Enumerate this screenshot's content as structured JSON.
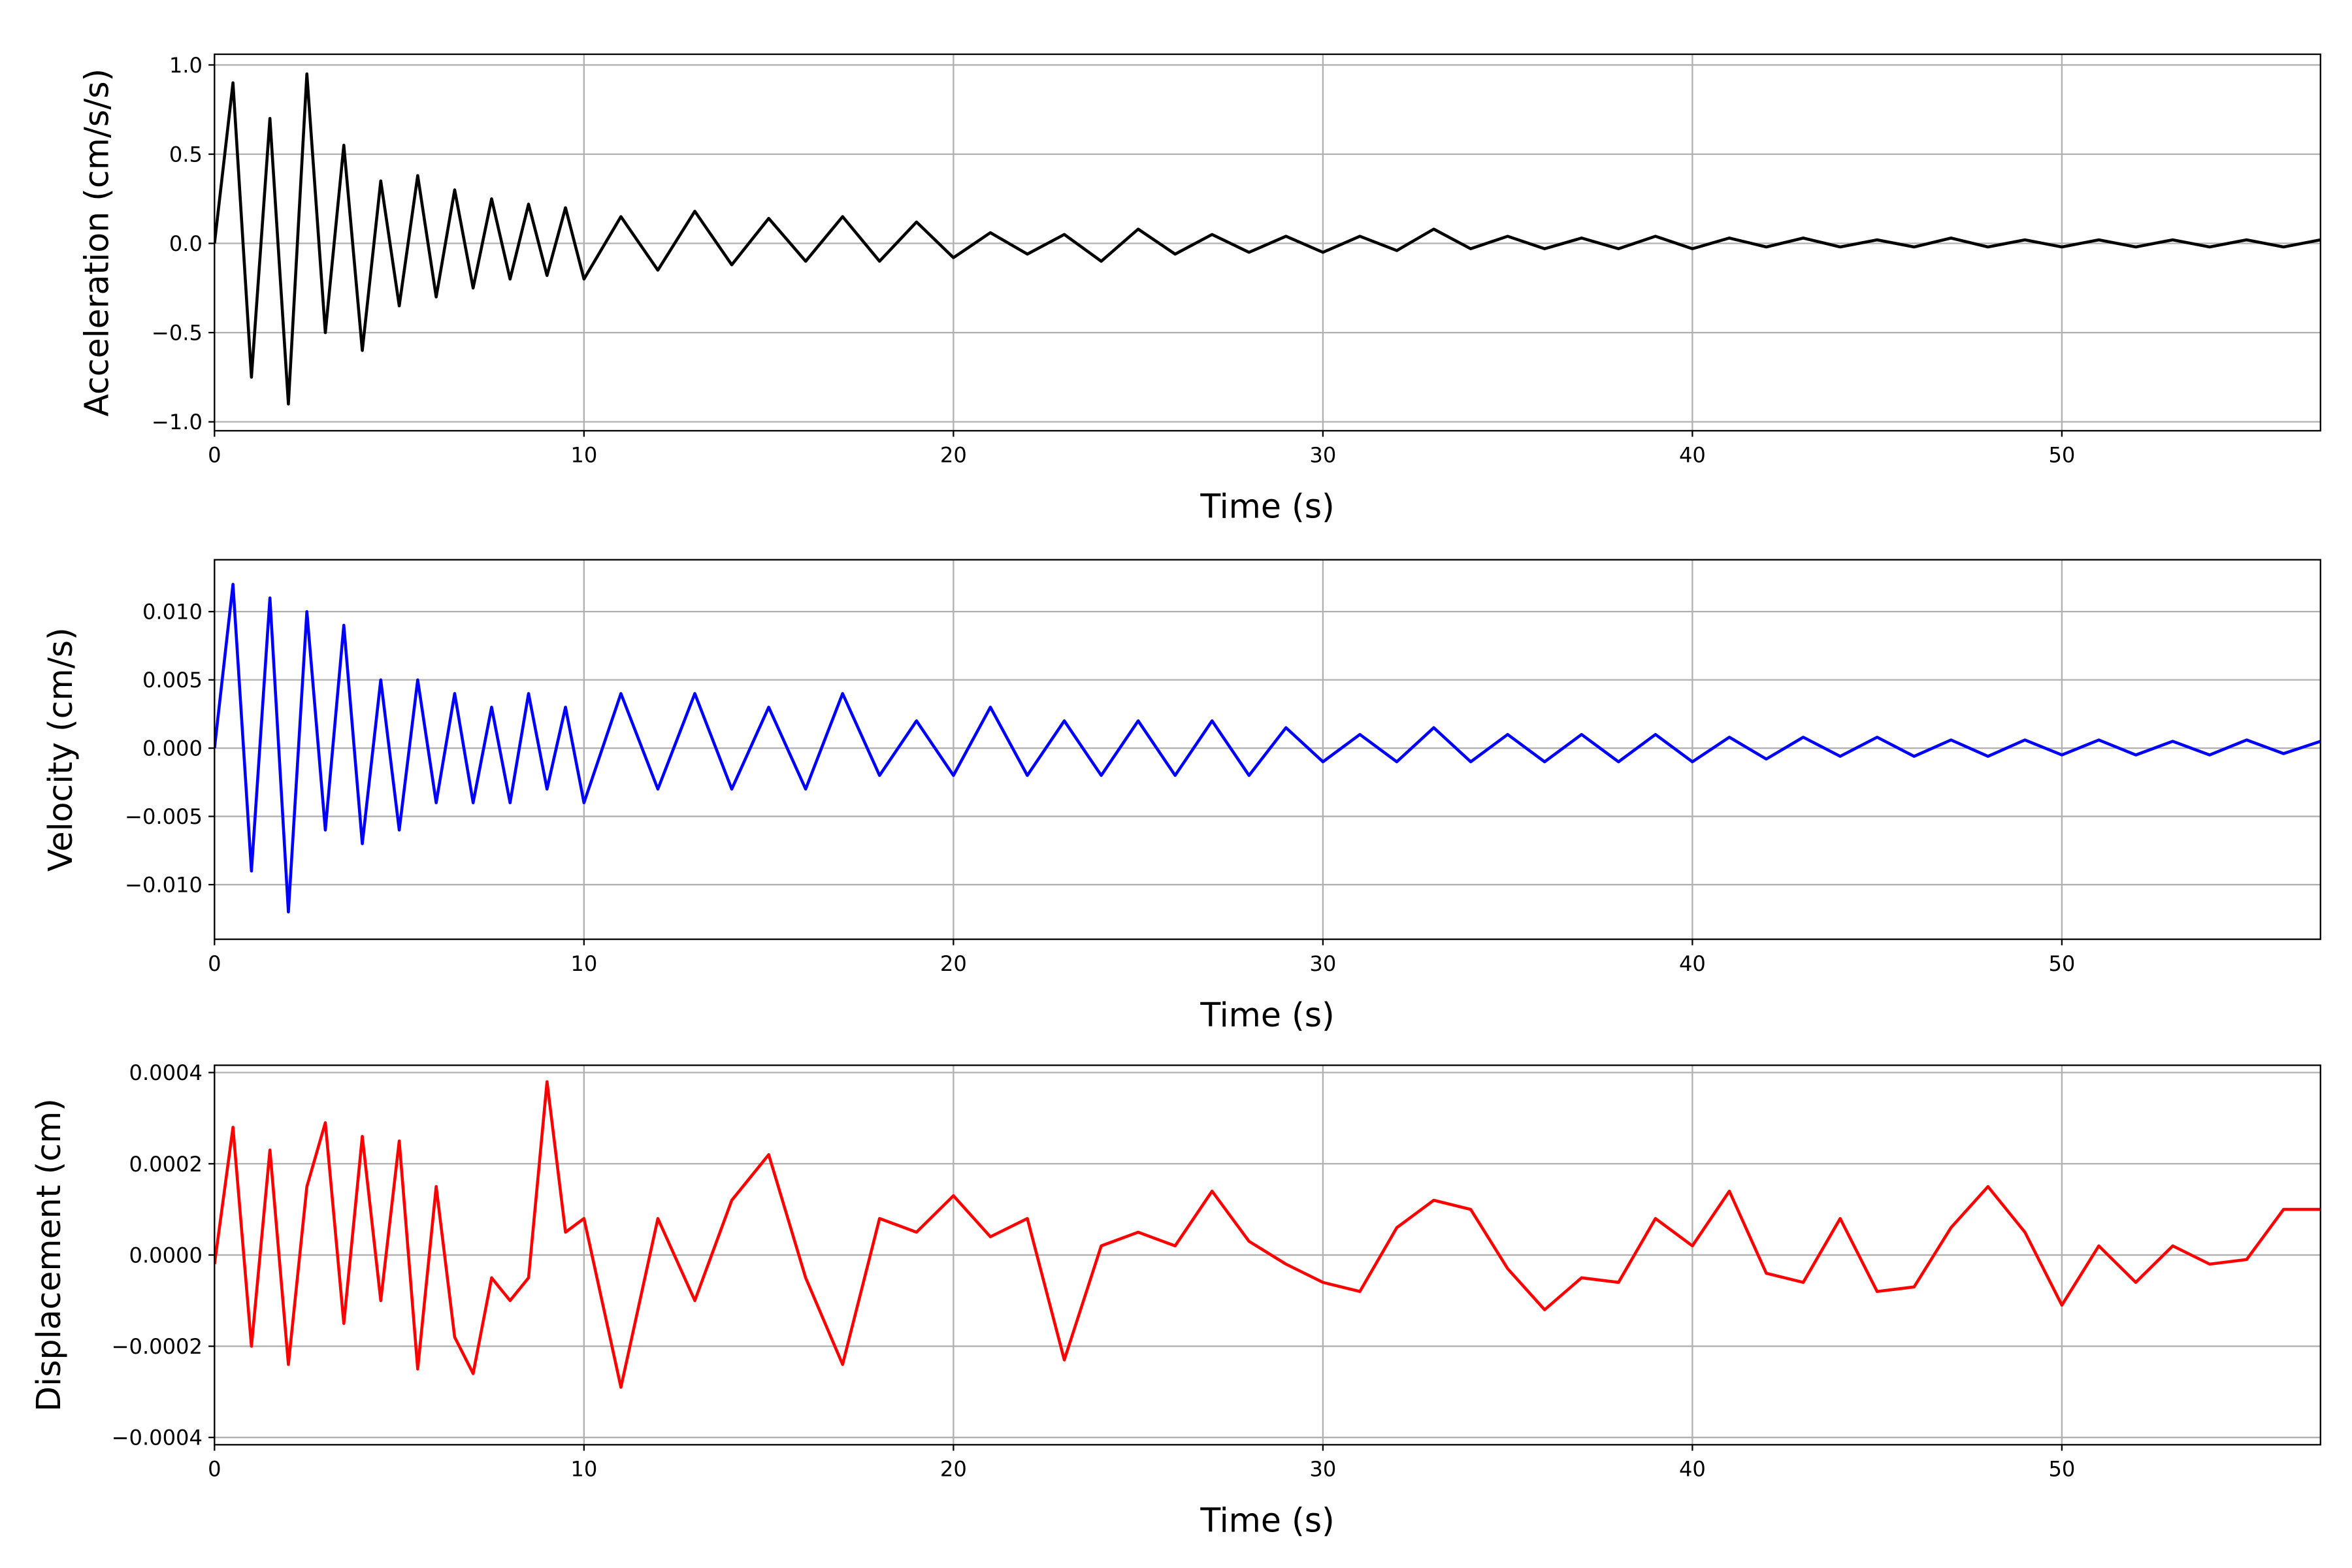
{
  "chart_data": [
    {
      "type": "line",
      "xlabel": "Time (s)",
      "ylabel": "Acceleration (cm/s/s)",
      "color": "#000000",
      "grid": true,
      "xlim": [
        0,
        57
      ],
      "ylim": [
        -1.05,
        1.06
      ],
      "xticks": [
        0,
        10,
        20,
        30,
        40,
        50
      ],
      "yticks": [
        {
          "value": -1.0,
          "label": "−1.0"
        },
        {
          "value": -0.5,
          "label": "−0.5"
        },
        {
          "value": 0.0,
          "label": "0.0"
        },
        {
          "value": 0.5,
          "label": "0.5"
        },
        {
          "value": 1.0,
          "label": "1.0"
        }
      ],
      "x": [
        0,
        0.5,
        1,
        1.5,
        2,
        2.5,
        3,
        3.5,
        4,
        4.5,
        5,
        5.5,
        6,
        6.5,
        7,
        7.5,
        8,
        8.5,
        9,
        9.5,
        10,
        11,
        12,
        13,
        14,
        15,
        16,
        17,
        18,
        19,
        20,
        21,
        22,
        23,
        24,
        25,
        26,
        27,
        28,
        29,
        30,
        31,
        32,
        33,
        34,
        35,
        36,
        37,
        38,
        39,
        40,
        41,
        42,
        43,
        44,
        45,
        46,
        47,
        48,
        49,
        50,
        51,
        52,
        53,
        54,
        55,
        56,
        57
      ],
      "values": [
        0,
        0.9,
        -0.75,
        0.7,
        -0.9,
        0.95,
        -0.5,
        0.55,
        -0.6,
        0.35,
        -0.35,
        0.38,
        -0.3,
        0.3,
        -0.25,
        0.25,
        -0.2,
        0.22,
        -0.18,
        0.2,
        -0.2,
        0.15,
        -0.15,
        0.18,
        -0.12,
        0.14,
        -0.1,
        0.15,
        -0.1,
        0.12,
        -0.08,
        0.06,
        -0.06,
        0.05,
        -0.1,
        0.08,
        -0.06,
        0.05,
        -0.05,
        0.04,
        -0.05,
        0.04,
        -0.04,
        0.08,
        -0.03,
        0.04,
        -0.03,
        0.03,
        -0.03,
        0.04,
        -0.03,
        0.03,
        -0.02,
        0.03,
        -0.02,
        0.02,
        -0.02,
        0.03,
        -0.02,
        0.02,
        -0.02,
        0.02,
        -0.02,
        0.02,
        -0.02,
        0.02,
        -0.02,
        0.02
      ]
    },
    {
      "type": "line",
      "xlabel": "Time (s)",
      "ylabel": "Velocity (cm/s)",
      "color": "#0000ff",
      "grid": true,
      "xlim": [
        0,
        57
      ],
      "ylim": [
        -0.014,
        0.0138
      ],
      "xticks": [
        0,
        10,
        20,
        30,
        40,
        50
      ],
      "yticks": [
        {
          "value": -0.01,
          "label": "−0.010"
        },
        {
          "value": -0.005,
          "label": "−0.005"
        },
        {
          "value": 0,
          "label": "0.000"
        },
        {
          "value": 0.005,
          "label": "0.005"
        },
        {
          "value": 0.01,
          "label": "0.010"
        }
      ],
      "x": [
        0,
        0.5,
        1,
        1.5,
        2,
        2.5,
        3,
        3.5,
        4,
        4.5,
        5,
        5.5,
        6,
        6.5,
        7,
        7.5,
        8,
        8.5,
        9,
        9.5,
        10,
        11,
        12,
        13,
        14,
        15,
        16,
        17,
        18,
        19,
        20,
        21,
        22,
        23,
        24,
        25,
        26,
        27,
        28,
        29,
        30,
        31,
        32,
        33,
        34,
        35,
        36,
        37,
        38,
        39,
        40,
        41,
        42,
        43,
        44,
        45,
        46,
        47,
        48,
        49,
        50,
        51,
        52,
        53,
        54,
        55,
        56,
        57
      ],
      "values": [
        0,
        0.012,
        -0.009,
        0.011,
        -0.012,
        0.01,
        -0.006,
        0.009,
        -0.007,
        0.005,
        -0.006,
        0.005,
        -0.004,
        0.004,
        -0.004,
        0.003,
        -0.004,
        0.004,
        -0.003,
        0.003,
        -0.004,
        0.004,
        -0.003,
        0.004,
        -0.003,
        0.003,
        -0.003,
        0.004,
        -0.002,
        0.002,
        -0.002,
        0.003,
        -0.002,
        0.002,
        -0.002,
        0.002,
        -0.002,
        0.002,
        -0.002,
        0.0015,
        -0.001,
        0.001,
        -0.001,
        0.0015,
        -0.001,
        0.001,
        -0.001,
        0.001,
        -0.001,
        0.001,
        -0.001,
        0.0008,
        -0.0008,
        0.0008,
        -0.0006,
        0.0008,
        -0.0006,
        0.0006,
        -0.0006,
        0.0006,
        -0.0005,
        0.0006,
        -0.0005,
        0.0005,
        -0.0005,
        0.0006,
        -0.0004,
        0.0005
      ]
    },
    {
      "type": "line",
      "xlabel": "Time (s)",
      "ylabel": "Displacement (cm)",
      "color": "#ff0000",
      "grid": true,
      "xlim": [
        0,
        57
      ],
      "ylim": [
        -0.000416,
        0.000416
      ],
      "xticks": [
        0,
        10,
        20,
        30,
        40,
        50
      ],
      "yticks": [
        {
          "value": -0.0004,
          "label": "−0.0004"
        },
        {
          "value": -0.0002,
          "label": "−0.0002"
        },
        {
          "value": 0,
          "label": "0.0000"
        },
        {
          "value": 0.0002,
          "label": "0.0002"
        },
        {
          "value": 0.0004,
          "label": "0.0004"
        }
      ],
      "x": [
        0,
        0.5,
        1,
        1.5,
        2,
        2.5,
        3,
        3.5,
        4,
        4.5,
        5,
        5.5,
        6,
        6.5,
        7,
        7.5,
        8,
        8.5,
        9,
        9.5,
        10,
        11,
        12,
        13,
        14,
        15,
        16,
        17,
        18,
        19,
        20,
        21,
        22,
        23,
        24,
        25,
        26,
        27,
        28,
        29,
        30,
        31,
        32,
        33,
        34,
        35,
        36,
        37,
        38,
        39,
        40,
        41,
        42,
        43,
        44,
        45,
        46,
        47,
        48,
        49,
        50,
        51,
        52,
        53,
        54,
        55,
        56,
        57
      ],
      "values": [
        -2e-05,
        0.00028,
        -0.0002,
        0.00023,
        -0.00024,
        0.00015,
        0.00029,
        -0.00015,
        0.00026,
        -0.0001,
        0.00025,
        -0.00025,
        0.00015,
        -0.00018,
        -0.00026,
        -5e-05,
        -0.0001,
        -5e-05,
        0.00038,
        5e-05,
        8e-05,
        -0.00029,
        8e-05,
        -0.0001,
        0.00012,
        0.00022,
        -5e-05,
        -0.00024,
        8e-05,
        5e-05,
        0.00013,
        4e-05,
        8e-05,
        -0.00023,
        2e-05,
        5e-05,
        2e-05,
        0.00014,
        3e-05,
        -2e-05,
        -6e-05,
        -8e-05,
        6e-05,
        0.00012,
        0.0001,
        -3e-05,
        -0.00012,
        -5e-05,
        -6e-05,
        8e-05,
        2e-05,
        0.00014,
        -4e-05,
        -6e-05,
        8e-05,
        -8e-05,
        -7e-05,
        6e-05,
        0.00015,
        5e-05,
        -0.00011,
        2e-05,
        -6e-05,
        2e-05,
        -2e-05,
        -1e-05,
        0.0001,
        0.0001
      ]
    }
  ]
}
